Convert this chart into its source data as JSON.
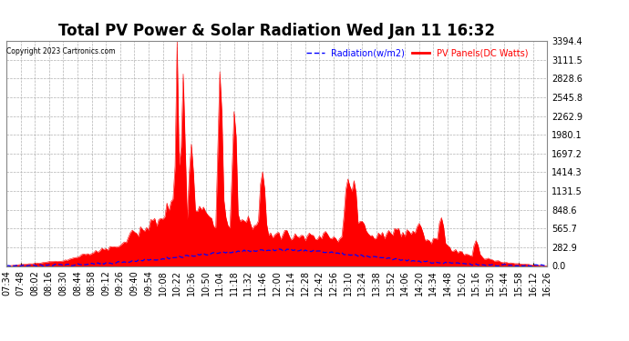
{
  "title": "Total PV Power & Solar Radiation Wed Jan 11 16:32",
  "copyright": "Copyright 2023 Cartronics.com",
  "legend_radiation": "Radiation(w/m2)",
  "legend_panels": "PV Panels(DC Watts)",
  "ylabel_right_values": [
    0.0,
    282.9,
    565.7,
    848.6,
    1131.5,
    1414.3,
    1697.2,
    1980.1,
    2262.9,
    2545.8,
    2828.6,
    3111.5,
    3394.4
  ],
  "ymax": 3394.4,
  "ymin": 0.0,
  "background_color": "#ffffff",
  "plot_bg_color": "#ffffff",
  "grid_color": "#aaaaaa",
  "red_fill_color": "#ff0000",
  "blue_line_color": "#0000ff",
  "title_fontsize": 12,
  "tick_fontsize": 7,
  "x_labels": [
    "07:34",
    "07:48",
    "08:02",
    "08:16",
    "08:30",
    "08:44",
    "08:58",
    "09:12",
    "09:26",
    "09:40",
    "09:54",
    "10:08",
    "10:22",
    "10:36",
    "10:50",
    "11:04",
    "11:18",
    "11:32",
    "11:46",
    "12:00",
    "12:14",
    "12:28",
    "12:42",
    "12:56",
    "13:10",
    "13:24",
    "13:38",
    "13:52",
    "14:06",
    "14:20",
    "14:34",
    "14:48",
    "15:02",
    "15:16",
    "15:30",
    "15:44",
    "15:58",
    "16:12",
    "16:26"
  ],
  "spike_positions": {
    "10:22": 3394.4,
    "10:28": 2980.0,
    "10:30": 1600.0,
    "10:36": 1700.0,
    "11:04": 2850.0,
    "11:06": 2300.0,
    "11:18": 2380.0,
    "11:20": 2100.0,
    "11:46": 1450.0,
    "13:10": 1250.0,
    "13:16": 1200.0
  }
}
